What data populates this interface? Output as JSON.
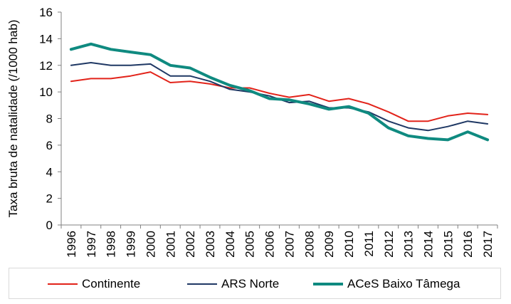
{
  "chart_data": {
    "type": "line",
    "title": "",
    "xlabel": "",
    "ylabel": "Taxa bruta de natalidade  (/1000 hab)",
    "ylim": [
      0,
      16
    ],
    "yticks": [
      0,
      2,
      4,
      6,
      8,
      10,
      12,
      14,
      16
    ],
    "grid": false,
    "legend_position": "bottom",
    "categories": [
      "1996",
      "1997",
      "1998",
      "1999",
      "2000",
      "2001",
      "2002",
      "2003",
      "2004",
      "2005",
      "2006",
      "2007",
      "2008",
      "2009",
      "2010",
      "2011",
      "2012",
      "2013",
      "2014",
      "2015",
      "2016",
      "2017"
    ],
    "series": [
      {
        "name": "Continente",
        "color": "#e2231a",
        "values": [
          10.8,
          11.0,
          11.0,
          11.2,
          11.5,
          10.7,
          10.8,
          10.6,
          10.3,
          10.3,
          9.9,
          9.6,
          9.8,
          9.3,
          9.5,
          9.1,
          8.5,
          7.8,
          7.8,
          8.2,
          8.4,
          8.3
        ]
      },
      {
        "name": "ARS Norte",
        "color": "#1f3864",
        "values": [
          12.0,
          12.2,
          12.0,
          12.0,
          12.1,
          11.2,
          11.2,
          10.8,
          10.2,
          10.0,
          9.7,
          9.2,
          9.3,
          8.8,
          8.8,
          8.5,
          7.8,
          7.3,
          7.1,
          7.4,
          7.8,
          7.6
        ]
      },
      {
        "name": "ACeS Baixo Tâmega",
        "color": "#0f8a80",
        "values": [
          13.2,
          13.6,
          13.2,
          13.0,
          12.8,
          12.0,
          11.8,
          11.1,
          10.5,
          10.1,
          9.5,
          9.4,
          9.1,
          8.7,
          8.9,
          8.4,
          7.3,
          6.7,
          6.5,
          6.4,
          7.0,
          6.4
        ]
      }
    ]
  }
}
